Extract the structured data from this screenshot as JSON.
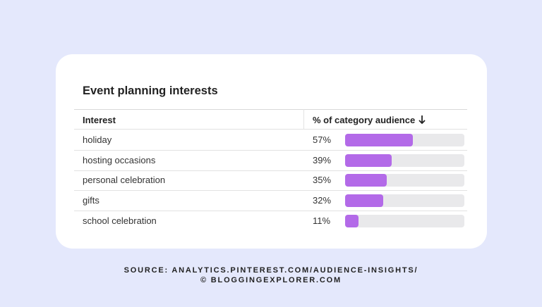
{
  "chart_data": {
    "type": "bar",
    "title": "Event planning interests",
    "column_headers": [
      "Interest",
      "% of category audience"
    ],
    "categories": [
      "holiday",
      "hosting occasions",
      "personal celebration",
      "gifts",
      "school celebration"
    ],
    "values": [
      57,
      39,
      35,
      32,
      11
    ],
    "value_labels": [
      "57%",
      "39%",
      "35%",
      "32%",
      "11%"
    ],
    "xlim": [
      0,
      100
    ],
    "color": "#b36ae8",
    "track_color": "#e9e9eb",
    "source": [
      "SOURCE: ANALYTICS.PINTEREST.COM/AUDIENCE-INSIGHTS/",
      "© BLOGGINGEXPLORER.COM"
    ]
  }
}
